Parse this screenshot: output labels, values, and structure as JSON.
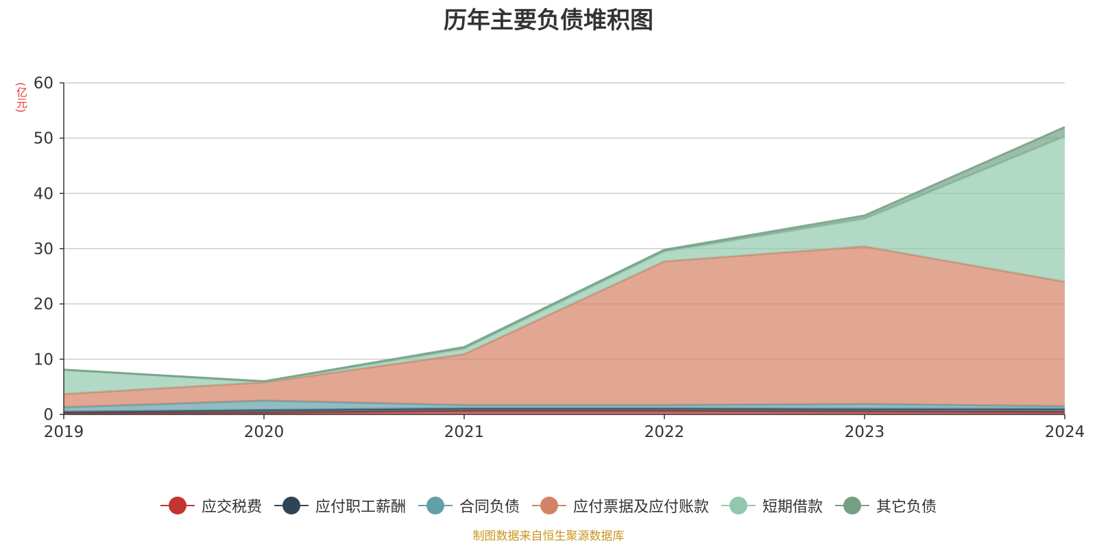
{
  "chart_data": {
    "type": "area",
    "title": "历年主要负债堆积图",
    "unit_label": "(亿元)",
    "source_note": "制图数据来自恒生聚源数据库",
    "categories": [
      "2019",
      "2020",
      "2021",
      "2022",
      "2023",
      "2024"
    ],
    "ylim": [
      0,
      60
    ],
    "y_ticks": [
      0,
      10,
      20,
      30,
      40,
      50,
      60
    ],
    "stacked": true,
    "grid": true,
    "legend_position": "bottom",
    "series": [
      {
        "name": "应交税费",
        "color": "#c23531",
        "values": [
          0.2,
          0.3,
          0.6,
          0.6,
          0.5,
          0.4
        ]
      },
      {
        "name": "应付职工薪酬",
        "color": "#2f4554",
        "values": [
          0.3,
          0.5,
          0.5,
          0.5,
          0.5,
          0.6
        ]
      },
      {
        "name": "合同负债",
        "color": "#61a0a8",
        "values": [
          0.8,
          1.7,
          0.6,
          0.6,
          0.9,
          0.5
        ]
      },
      {
        "name": "应付票据及应付账款",
        "color": "#d48265",
        "values": [
          2.4,
          3.3,
          9.2,
          26.0,
          28.5,
          22.5
        ]
      },
      {
        "name": "短期借款",
        "color": "#91c7ae",
        "values": [
          4.4,
          0.1,
          1.0,
          1.8,
          5.0,
          26.3
        ]
      },
      {
        "name": "其它负债",
        "color": "#749f83",
        "values": [
          0.0,
          0.1,
          0.3,
          0.3,
          0.6,
          1.7
        ]
      }
    ]
  }
}
